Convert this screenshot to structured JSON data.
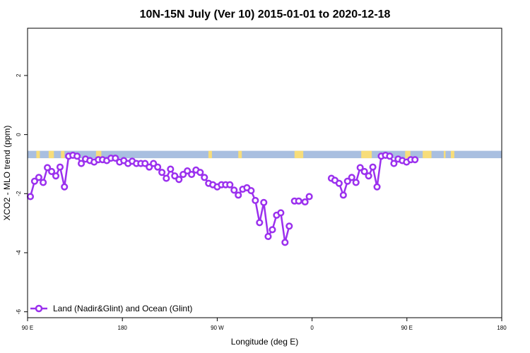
{
  "chart_data": {
    "type": "line",
    "title": "10N-15N July (Ver 10)   2015-01-01 to 2020-12-18",
    "xlabel": "Longitude (deg E)",
    "ylabel": "XCO2 - MLO trend (ppm)",
    "x_axis": {
      "min": -90,
      "max": 180
    },
    "xlim": [
      -90,
      180
    ],
    "ylim": [
      -6.2,
      3.6
    ],
    "x_tick_values": [
      -90,
      -36,
      18,
      72,
      126,
      180
    ],
    "x_tick_labels": [
      "90 E",
      "180",
      "90 W",
      "0",
      "90 E",
      "180"
    ],
    "y_tick_values": [
      -6,
      -4,
      -2,
      0,
      2
    ],
    "y_tick_labels": [
      "-6",
      "-4",
      "-2",
      "0",
      "2"
    ],
    "legend": {
      "position": "bottom-left",
      "entries": [
        "Land (Nadir&Glint) and Ocean (Glint)"
      ]
    },
    "colors": {
      "series": "#9b30ee",
      "ocean_band": "#a9bfe0",
      "land_band": "#f7dd7a",
      "frame": "#000000"
    },
    "band": {
      "y_top": -0.55,
      "y_bottom": -0.8,
      "land_spans": [
        [
          -85,
          -83
        ],
        [
          -78,
          -75
        ],
        [
          -71,
          -69
        ],
        [
          -51,
          -48
        ],
        [
          13,
          15
        ],
        [
          30,
          32
        ],
        [
          62,
          67
        ],
        [
          100,
          106
        ],
        [
          125,
          128
        ],
        [
          135,
          140
        ],
        [
          147,
          148
        ],
        [
          151,
          153
        ]
      ]
    },
    "series": [
      {
        "name": "Land (Nadir&Glint) and Ocean (Glint)",
        "points": [
          [
            -88.4,
            -2.1
          ],
          [
            -86.0,
            -1.58
          ],
          [
            -83.6,
            -1.45
          ],
          [
            -81.1,
            -1.62
          ],
          [
            -78.7,
            -1.12
          ],
          [
            -76.3,
            -1.25
          ],
          [
            -73.9,
            -1.4
          ],
          [
            -71.5,
            -1.1
          ],
          [
            -69.0,
            -1.77
          ],
          [
            -66.6,
            -0.73
          ],
          [
            -64.2,
            -0.7
          ],
          [
            -61.8,
            -0.73
          ],
          [
            -59.4,
            -0.98
          ],
          [
            -57.0,
            -0.83
          ],
          [
            -54.5,
            -0.88
          ],
          [
            -52.1,
            -0.93
          ],
          [
            -49.7,
            -0.85
          ],
          [
            -47.3,
            -0.85
          ],
          [
            -44.9,
            -0.88
          ],
          [
            -42.5,
            -0.8
          ],
          [
            -40.0,
            -0.8
          ],
          [
            -37.6,
            -0.93
          ],
          [
            -35.2,
            -0.88
          ],
          [
            -32.8,
            -0.98
          ],
          [
            -30.4,
            -0.9
          ],
          [
            -28.0,
            -0.98
          ],
          [
            -25.5,
            -0.98
          ],
          [
            -23.1,
            -0.98
          ],
          [
            -20.7,
            -1.1
          ],
          [
            -18.3,
            -0.98
          ],
          [
            -15.9,
            -1.1
          ],
          [
            -13.5,
            -1.28
          ],
          [
            -11.0,
            -1.48
          ],
          [
            -8.6,
            -1.17
          ],
          [
            -6.2,
            -1.4
          ],
          [
            -3.8,
            -1.52
          ],
          [
            -1.4,
            -1.35
          ],
          [
            1.0,
            -1.23
          ],
          [
            3.4,
            -1.35
          ],
          [
            5.9,
            -1.2
          ],
          [
            8.3,
            -1.28
          ],
          [
            10.7,
            -1.45
          ],
          [
            13.1,
            -1.65
          ],
          [
            15.5,
            -1.7
          ],
          [
            18.0,
            -1.77
          ],
          [
            20.4,
            -1.7
          ],
          [
            22.8,
            -1.7
          ],
          [
            25.2,
            -1.7
          ],
          [
            27.6,
            -1.88
          ],
          [
            30.0,
            -2.05
          ],
          [
            32.5,
            -1.85
          ],
          [
            34.9,
            -1.8
          ],
          [
            37.3,
            -1.9
          ],
          [
            39.7,
            -2.23
          ],
          [
            42.1,
            -2.98
          ],
          [
            44.5,
            -2.3
          ],
          [
            47.0,
            -3.45
          ],
          [
            49.4,
            -3.22
          ],
          [
            51.8,
            -2.73
          ],
          [
            54.2,
            -2.65
          ],
          [
            56.6,
            -3.65
          ],
          [
            59.0,
            -3.1
          ],
          [
            null,
            null
          ],
          [
            62.0,
            -2.25
          ],
          [
            64.4,
            -2.25
          ],
          [
            null,
            null
          ],
          [
            68.0,
            -2.28
          ],
          [
            70.4,
            -2.1
          ],
          [
            null,
            null
          ],
          [
            83.0,
            -1.48
          ],
          [
            85.0,
            -1.55
          ],
          [
            87.4,
            -1.65
          ],
          [
            89.8,
            -2.05
          ],
          [
            92.2,
            -1.58
          ],
          [
            94.6,
            -1.45
          ],
          [
            97.0,
            -1.62
          ],
          [
            99.4,
            -1.12
          ],
          [
            101.8,
            -1.25
          ],
          [
            104.2,
            -1.4
          ],
          [
            106.6,
            -1.1
          ],
          [
            109.0,
            -1.77
          ],
          [
            111.4,
            -0.73
          ],
          [
            113.8,
            -0.7
          ],
          [
            116.2,
            -0.73
          ],
          [
            118.6,
            -0.98
          ],
          [
            121.0,
            -0.83
          ],
          [
            123.4,
            -0.88
          ],
          [
            125.8,
            -0.93
          ],
          [
            128.2,
            -0.85
          ],
          [
            130.6,
            -0.85
          ]
        ]
      }
    ]
  }
}
